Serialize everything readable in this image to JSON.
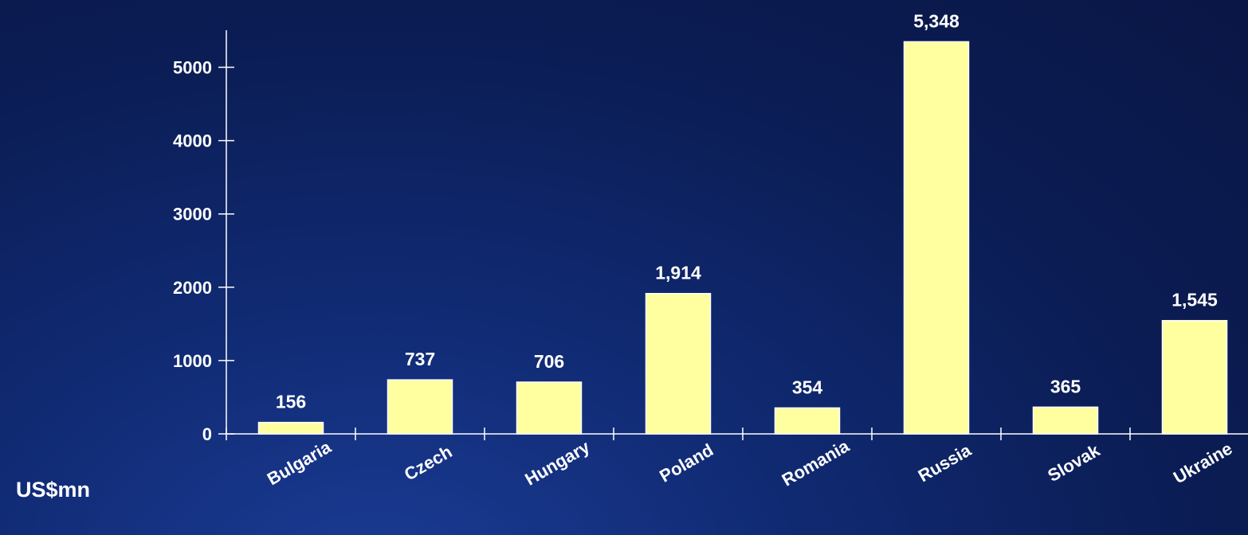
{
  "chart_data": {
    "type": "bar",
    "categories": [
      "Bulgaria",
      "Czech",
      "Hungary",
      "Poland",
      "Romania",
      "Russia",
      "Slovak",
      "Ukraine"
    ],
    "values": [
      156,
      737,
      706,
      1914,
      354,
      5348,
      365,
      1545
    ],
    "data_labels": [
      "156",
      "737",
      "706",
      "1,914",
      "354",
      "5,348",
      "365",
      "1,545"
    ],
    "y_ticks": [
      0,
      1000,
      2000,
      3000,
      4000,
      5000
    ],
    "ylim": [
      0,
      5500
    ],
    "unit_label": "US$mn",
    "title": "",
    "xlabel": "",
    "ylabel": "",
    "grid": false,
    "colors": {
      "bar_fill": "#ffffa0",
      "bar_stroke": "#ffffff",
      "axis": "#ffffff",
      "text": "#ffffff"
    }
  }
}
